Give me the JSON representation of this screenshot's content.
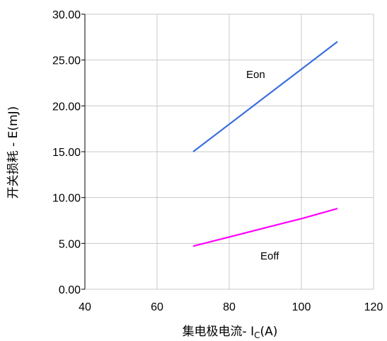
{
  "chart_data": {
    "type": "line",
    "xlabel": "集电极电流- I",
    "xlabel_sub": "C",
    "xlabel_suffix": "(A)",
    "ylabel": "开关损耗 - E(mJ)",
    "xlim": [
      40,
      120
    ],
    "ylim": [
      0,
      30
    ],
    "x_ticks": [
      "40",
      "60",
      "80",
      "100",
      "120"
    ],
    "y_ticks": [
      "0.00",
      "5.00",
      "10.00",
      "15.00",
      "20.00",
      "25.00",
      "30.00"
    ],
    "grid": true,
    "series": [
      {
        "name": "Eon",
        "color": "#3b6fe0",
        "x": [
          70,
          80,
          90,
          100,
          110
        ],
        "y": [
          15.0,
          18.0,
          21.0,
          24.0,
          27.0
        ]
      },
      {
        "name": "Eoff",
        "color": "#ff00ff",
        "x": [
          70,
          80,
          90,
          100,
          110
        ],
        "y": [
          4.7,
          5.7,
          6.7,
          7.7,
          8.8
        ]
      }
    ]
  }
}
